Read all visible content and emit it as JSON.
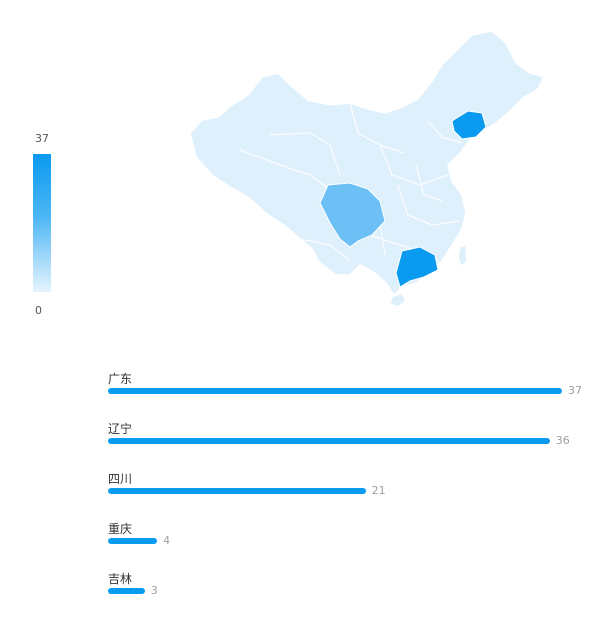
{
  "legend": {
    "max": "37",
    "min": "0",
    "max_color": "#0a9af0",
    "min_color": "#e5f4fe"
  },
  "chart_data": {
    "type": "bar",
    "categories": [
      "广东",
      "辽宁",
      "四川",
      "重庆",
      "吉林"
    ],
    "values": [
      37,
      36,
      21,
      4,
      3
    ],
    "xlim": [
      0,
      37
    ]
  },
  "map": {
    "highlighted_provinces": [
      "广东",
      "辽宁",
      "四川"
    ],
    "base_color": "#dff0fd",
    "highlight_colors": [
      "#0a9af0",
      "#0a9af0",
      "#6cc0f5"
    ]
  }
}
